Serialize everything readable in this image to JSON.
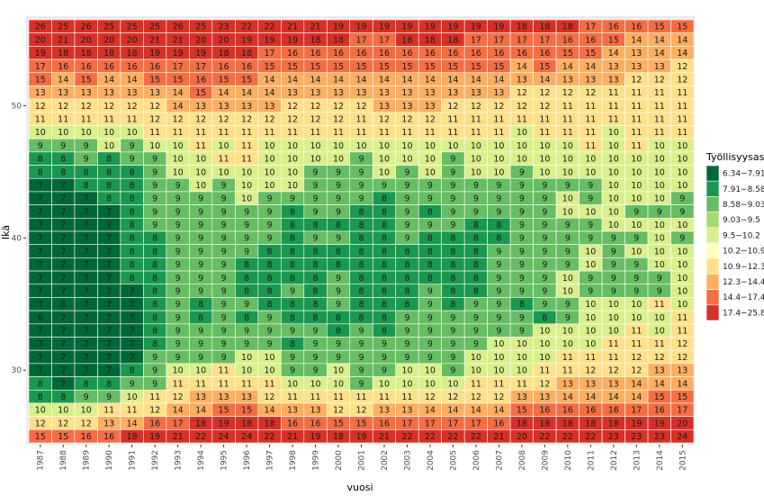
{
  "chart_data": {
    "type": "heatmap",
    "xlabel": "vuosi",
    "ylabel": "Ikä",
    "x": [
      "1987",
      "1988",
      "1989",
      "1990",
      "1991",
      "1992",
      "1993",
      "1994",
      "1995",
      "1996",
      "1997",
      "1998",
      "1999",
      "2000",
      "2001",
      "2002",
      "2003",
      "2004",
      "2005",
      "2006",
      "2007",
      "2008",
      "2009",
      "2010",
      "2011",
      "2012",
      "2013",
      "2014",
      "2015"
    ],
    "y_tick_labels": [
      "30",
      "40",
      "50"
    ],
    "y_tick_values": [
      30,
      40,
      50
    ],
    "y_ages_top_to_bottom": [
      56,
      55,
      54,
      53,
      52,
      51,
      50,
      49,
      48,
      47,
      46,
      45,
      44,
      43,
      42,
      41,
      40,
      39,
      38,
      37,
      36,
      35,
      34,
      33,
      32,
      31,
      30,
      29,
      28,
      27,
      26,
      25
    ],
    "values": [
      [
        26,
        25,
        26,
        25,
        25,
        25,
        26,
        25,
        23,
        22,
        22,
        21,
        21,
        19,
        19,
        19,
        19,
        19,
        19,
        19,
        19,
        18,
        18,
        18,
        17,
        16,
        16,
        15,
        15
      ],
      [
        20,
        21,
        20,
        20,
        20,
        21,
        21,
        20,
        20,
        19,
        19,
        19,
        18,
        18,
        17,
        17,
        18,
        18,
        18,
        17,
        17,
        17,
        17,
        16,
        16,
        15,
        14,
        14,
        14
      ],
      [
        19,
        18,
        18,
        18,
        18,
        19,
        19,
        19,
        18,
        18,
        17,
        16,
        16,
        16,
        16,
        16,
        16,
        16,
        16,
        16,
        16,
        16,
        16,
        15,
        15,
        14,
        13,
        14,
        14
      ],
      [
        17,
        16,
        16,
        16,
        16,
        16,
        17,
        17,
        16,
        16,
        15,
        15,
        15,
        15,
        15,
        15,
        15,
        15,
        15,
        15,
        15,
        14,
        15,
        14,
        14,
        13,
        13,
        13,
        12
      ],
      [
        15,
        14,
        15,
        14,
        14,
        15,
        15,
        16,
        15,
        15,
        14,
        14,
        14,
        14,
        14,
        14,
        14,
        14,
        14,
        14,
        14,
        13,
        14,
        13,
        13,
        13,
        12,
        12,
        12
      ],
      [
        13,
        13,
        13,
        13,
        13,
        13,
        14,
        15,
        14,
        14,
        14,
        13,
        13,
        13,
        13,
        13,
        13,
        13,
        13,
        13,
        13,
        12,
        12,
        12,
        12,
        11,
        11,
        11,
        11
      ],
      [
        12,
        12,
        12,
        12,
        12,
        12,
        14,
        13,
        13,
        13,
        13,
        12,
        12,
        12,
        12,
        13,
        13,
        13,
        12,
        12,
        12,
        12,
        12,
        11,
        11,
        11,
        11,
        11,
        11
      ],
      [
        11,
        11,
        11,
        11,
        11,
        12,
        12,
        12,
        12,
        12,
        12,
        12,
        12,
        12,
        11,
        12,
        12,
        12,
        11,
        11,
        11,
        11,
        11,
        11,
        11,
        11,
        11,
        11,
        11
      ],
      [
        10,
        10,
        10,
        10,
        10,
        11,
        11,
        11,
        11,
        11,
        11,
        11,
        11,
        11,
        11,
        11,
        11,
        11,
        11,
        11,
        11,
        10,
        11,
        11,
        11,
        10,
        11,
        11,
        11
      ],
      [
        9,
        9,
        9,
        10,
        9,
        10,
        10,
        11,
        10,
        11,
        10,
        10,
        10,
        10,
        10,
        10,
        10,
        10,
        10,
        10,
        10,
        10,
        10,
        10,
        11,
        10,
        11,
        10,
        10
      ],
      [
        8,
        8,
        9,
        8,
        9,
        9,
        10,
        10,
        11,
        11,
        10,
        10,
        10,
        10,
        9,
        10,
        10,
        10,
        9,
        10,
        10,
        10,
        10,
        10,
        10,
        10,
        10,
        10,
        10
      ],
      [
        8,
        8,
        8,
        8,
        8,
        9,
        10,
        10,
        10,
        10,
        10,
        10,
        9,
        9,
        9,
        10,
        9,
        10,
        9,
        10,
        10,
        9,
        10,
        10,
        10,
        10,
        10,
        10,
        10
      ],
      [
        7,
        7,
        8,
        8,
        8,
        9,
        9,
        10,
        9,
        10,
        10,
        10,
        9,
        9,
        9,
        9,
        9,
        9,
        9,
        9,
        9,
        9,
        9,
        9,
        9,
        10,
        10,
        10,
        10
      ],
      [
        7,
        7,
        7,
        8,
        8,
        9,
        9,
        9,
        9,
        10,
        9,
        9,
        9,
        9,
        9,
        8,
        9,
        9,
        9,
        9,
        9,
        9,
        9,
        10,
        9,
        10,
        10,
        10,
        9
      ],
      [
        7,
        7,
        7,
        7,
        8,
        9,
        9,
        9,
        9,
        9,
        9,
        8,
        9,
        9,
        8,
        8,
        9,
        8,
        9,
        9,
        9,
        9,
        9,
        10,
        10,
        10,
        9,
        9,
        9
      ],
      [
        7,
        7,
        7,
        7,
        8,
        9,
        9,
        9,
        9,
        9,
        9,
        8,
        8,
        8,
        8,
        8,
        9,
        9,
        9,
        8,
        8,
        9,
        9,
        9,
        9,
        10,
        10,
        10,
        10
      ],
      [
        7,
        7,
        7,
        7,
        8,
        8,
        9,
        9,
        9,
        9,
        9,
        8,
        9,
        9,
        8,
        8,
        9,
        8,
        8,
        8,
        8,
        9,
        9,
        9,
        9,
        9,
        9,
        10,
        9
      ],
      [
        7,
        7,
        7,
        7,
        8,
        8,
        9,
        9,
        9,
        9,
        8,
        8,
        8,
        8,
        8,
        8,
        8,
        8,
        8,
        8,
        9,
        9,
        9,
        9,
        10,
        9,
        10,
        10,
        10
      ],
      [
        7,
        7,
        7,
        7,
        8,
        8,
        9,
        9,
        9,
        8,
        8,
        8,
        8,
        8,
        8,
        8,
        8,
        8,
        8,
        8,
        9,
        9,
        9,
        9,
        10,
        9,
        9,
        10,
        10
      ],
      [
        7,
        7,
        7,
        7,
        8,
        8,
        9,
        9,
        9,
        8,
        8,
        8,
        8,
        9,
        8,
        8,
        8,
        8,
        8,
        8,
        9,
        9,
        9,
        10,
        9,
        9,
        9,
        9,
        10
      ],
      [
        7,
        7,
        7,
        7,
        7,
        8,
        9,
        9,
        9,
        8,
        8,
        9,
        8,
        9,
        8,
        8,
        8,
        9,
        8,
        8,
        9,
        9,
        9,
        10,
        9,
        9,
        9,
        9,
        10
      ],
      [
        7,
        6,
        7,
        7,
        7,
        8,
        9,
        8,
        9,
        9,
        8,
        8,
        8,
        9,
        8,
        8,
        8,
        9,
        8,
        9,
        9,
        8,
        9,
        9,
        10,
        10,
        10,
        11,
        10
      ],
      [
        6,
        7,
        7,
        7,
        7,
        8,
        9,
        8,
        9,
        8,
        9,
        8,
        8,
        8,
        8,
        8,
        9,
        9,
        9,
        9,
        9,
        9,
        8,
        9,
        10,
        10,
        10,
        10,
        11
      ],
      [
        7,
        7,
        7,
        7,
        7,
        8,
        9,
        9,
        9,
        9,
        9,
        9,
        9,
        8,
        9,
        8,
        9,
        9,
        9,
        9,
        9,
        9,
        10,
        10,
        10,
        10,
        11,
        10,
        11
      ],
      [
        7,
        7,
        7,
        7,
        7,
        8,
        9,
        9,
        9,
        9,
        9,
        8,
        9,
        9,
        9,
        9,
        9,
        9,
        9,
        9,
        10,
        10,
        10,
        10,
        10,
        11,
        11,
        11,
        12
      ],
      [
        7,
        7,
        7,
        7,
        7,
        9,
        9,
        9,
        9,
        10,
        10,
        9,
        9,
        9,
        9,
        9,
        9,
        9,
        9,
        10,
        10,
        10,
        10,
        11,
        11,
        11,
        12,
        12,
        12
      ],
      [
        7,
        7,
        7,
        7,
        8,
        9,
        10,
        10,
        11,
        10,
        10,
        9,
        9,
        10,
        9,
        9,
        10,
        10,
        9,
        10,
        10,
        10,
        11,
        11,
        12,
        12,
        12,
        13,
        13
      ],
      [
        8,
        7,
        8,
        8,
        9,
        9,
        11,
        11,
        11,
        11,
        11,
        10,
        10,
        10,
        9,
        10,
        10,
        10,
        10,
        11,
        11,
        11,
        12,
        13,
        13,
        13,
        14,
        14,
        14
      ],
      [
        8,
        8,
        9,
        9,
        10,
        11,
        12,
        13,
        13,
        13,
        12,
        11,
        11,
        11,
        11,
        11,
        11,
        12,
        12,
        12,
        12,
        13,
        13,
        14,
        14,
        14,
        14,
        15,
        15
      ],
      [
        10,
        10,
        10,
        11,
        11,
        12,
        14,
        14,
        15,
        15,
        14,
        13,
        13,
        12,
        12,
        13,
        13,
        14,
        14,
        14,
        14,
        15,
        16,
        16,
        16,
        16,
        17,
        16,
        17
      ],
      [
        12,
        12,
        12,
        13,
        14,
        16,
        17,
        18,
        19,
        18,
        18,
        16,
        16,
        15,
        15,
        16,
        17,
        17,
        17,
        17,
        16,
        18,
        18,
        18,
        18,
        18,
        19,
        19,
        20
      ],
      [
        15,
        15,
        16,
        16,
        18,
        19,
        21,
        22,
        24,
        24,
        22,
        21,
        19,
        18,
        19,
        21,
        22,
        22,
        22,
        22,
        21,
        20,
        22,
        22,
        22,
        23,
        23,
        23,
        24
      ]
    ],
    "legend_title": "Työllisyysaste",
    "legend": [
      {
        "label": "6.34−7.91",
        "color": "#006837"
      },
      {
        "label": "7.91−8.58",
        "color": "#1a9850"
      },
      {
        "label": "8.58−9.03",
        "color": "#66bd63"
      },
      {
        "label": "9.03−9.5",
        "color": "#a6d96a"
      },
      {
        "label": "9.5−10.2",
        "color": "#d9ef8b"
      },
      {
        "label": "10.2−10.9",
        "color": "#ffffbf"
      },
      {
        "label": "10.9−12.3",
        "color": "#fee08b"
      },
      {
        "label": "12.3−14.4",
        "color": "#fdae61"
      },
      {
        "label": "14.4−17.4",
        "color": "#f46d43"
      },
      {
        "label": "17.4−25.8",
        "color": "#d73027"
      }
    ],
    "legend_position": "right"
  }
}
